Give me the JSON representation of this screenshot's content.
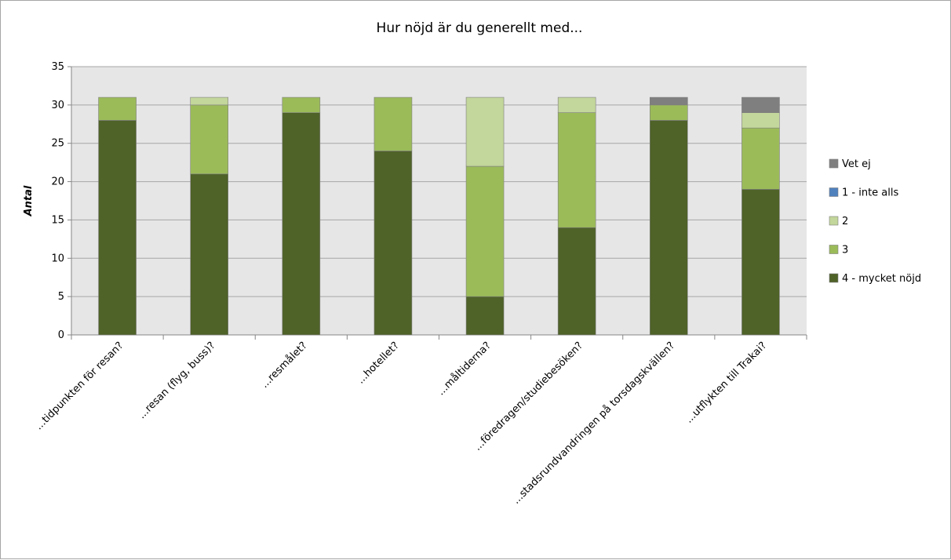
{
  "chart_data": {
    "type": "bar",
    "stacked": true,
    "title": "Hur nöjd är du generellt med...",
    "ylabel": "Antal",
    "xlabel": "",
    "ylim": [
      0,
      35
    ],
    "yticks": [
      0,
      5,
      10,
      15,
      20,
      25,
      30,
      35
    ],
    "grid": true,
    "legend_position": "right",
    "categories": [
      "...tidpunkten för resan?",
      "...resan (flyg, buss)?",
      "...resmålet?",
      "...hotellet?",
      "...måltiderna?",
      "...föredragen/studiebesöken?",
      "...stadsrundvandringen på torsdagskvällen?",
      "...utflykten till Trakai?"
    ],
    "series": [
      {
        "name": "4 - mycket nöjd",
        "color": "#4f6228",
        "values": [
          28,
          21,
          29,
          24,
          5,
          14,
          28,
          19
        ]
      },
      {
        "name": "3",
        "color": "#9bbb59",
        "values": [
          3,
          9,
          2,
          7,
          17,
          15,
          2,
          8
        ]
      },
      {
        "name": "2",
        "color": "#c3d69b",
        "values": [
          0,
          1,
          0,
          0,
          9,
          2,
          0,
          2
        ]
      },
      {
        "name": "1 - inte alls",
        "color": "#4f81bd",
        "values": [
          0,
          0,
          0,
          0,
          0,
          0,
          0,
          0
        ]
      },
      {
        "name": "Vet ej",
        "color": "#7f7f7f",
        "values": [
          0,
          0,
          0,
          0,
          0,
          0,
          1,
          2
        ]
      }
    ],
    "legend_order": [
      "Vet ej",
      "1 - inte alls",
      "2",
      "3",
      "4 - mycket nöjd"
    ],
    "plot_background": "#e6e6e6",
    "grid_color": "#a6a6a6"
  }
}
